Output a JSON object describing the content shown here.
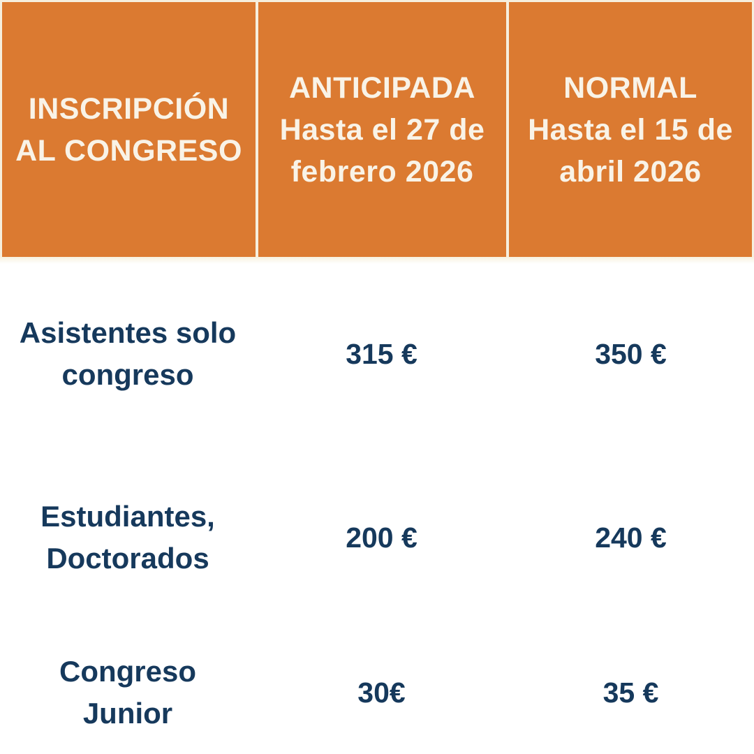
{
  "colors": {
    "header_background": "#DB7A31",
    "header_text": "#F9F3E7",
    "divider_cream": "#F6EFDE",
    "body_text_navy": "#16395C",
    "body_background": "#FFFFFF"
  },
  "table": {
    "header": {
      "col1": "INSCRIPCIÓN\nAL CONGRESO",
      "col2": "ANTICIPADA\nHasta el 27 de\nfebrero 2026",
      "col3": "NORMAL\nHasta el 15 de\nabril 2026"
    },
    "rows": [
      {
        "label": "Asistentes solo\ncongreso",
        "anticipada": "315 €",
        "normal": "350 €"
      },
      {
        "label": "Estudiantes,\nDoctorados",
        "anticipada": "200 €",
        "normal": "240 €"
      },
      {
        "label": "Congreso\nJunior",
        "anticipada": "30€",
        "normal": "35 €"
      }
    ]
  },
  "chart_data": {
    "type": "table",
    "title": "INSCRIPCIÓN AL CONGRESO",
    "columns": [
      "INSCRIPCIÓN AL CONGRESO",
      "ANTICIPADA Hasta el 27 de febrero 2026",
      "NORMAL Hasta el 15 de abril 2026"
    ],
    "rows": [
      [
        "Asistentes solo congreso",
        "315 €",
        "350 €"
      ],
      [
        "Estudiantes, Doctorados",
        "200 €",
        "240 €"
      ],
      [
        "Congreso Junior",
        "30€",
        "35 €"
      ]
    ],
    "prices_eur": {
      "asistentes_solo_congreso": {
        "anticipada": 315,
        "normal": 350
      },
      "estudiantes_doctorados": {
        "anticipada": 200,
        "normal": 240
      },
      "congreso_junior": {
        "anticipada": 30,
        "normal": 35
      }
    }
  }
}
